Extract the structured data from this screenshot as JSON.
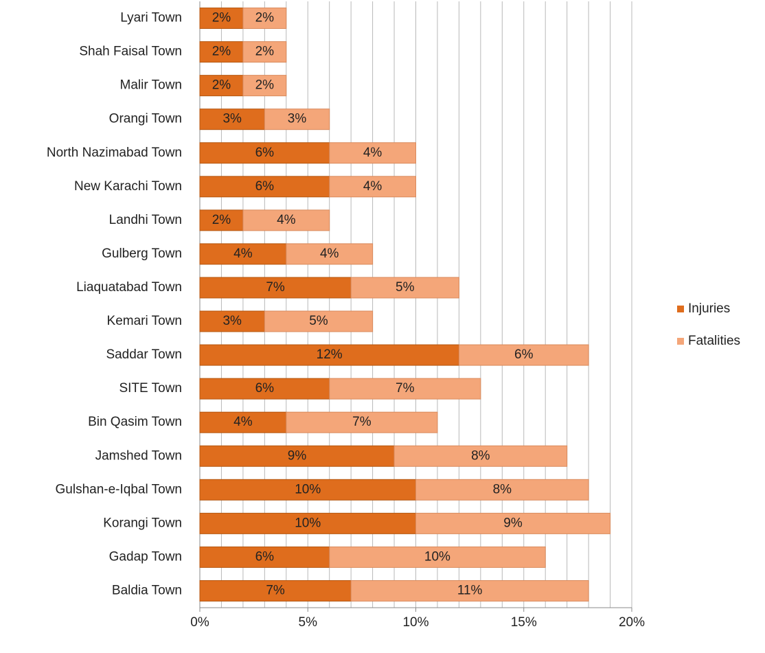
{
  "chart_data": {
    "type": "stacked_barh",
    "categories": [
      "Lyari Town",
      "Shah Faisal Town",
      "Malir Town",
      "Orangi Town",
      "North Nazimabad Town",
      "New Karachi Town",
      "Landhi Town",
      "Gulberg Town",
      "Liaquatabad Town",
      "Kemari Town",
      "Saddar Town",
      "SITE Town",
      "Bin Qasim Town",
      "Jamshed Town",
      "Gulshan-e-Iqbal Town",
      "Korangi Town",
      "Gadap Town",
      "Baldia Town"
    ],
    "series": [
      {
        "name": "Injuries",
        "color": "#df6d1d",
        "border": "#b4560f",
        "values": [
          2,
          2,
          2,
          3,
          6,
          6,
          2,
          4,
          7,
          3,
          12,
          6,
          4,
          9,
          10,
          10,
          6,
          7
        ],
        "value_labels": [
          "2%",
          "2%",
          "2%",
          "3%",
          "6%",
          "6%",
          "2%",
          "4%",
          "7%",
          "3%",
          "12%",
          "6%",
          "4%",
          "9%",
          "10%",
          "10%",
          "6%",
          "7%"
        ]
      },
      {
        "name": "Fatalities",
        "color": "#f4a679",
        "border": "#d98a5c",
        "values": [
          2,
          2,
          2,
          3,
          4,
          4,
          4,
          4,
          5,
          5,
          6,
          7,
          7,
          8,
          8,
          9,
          10,
          11
        ],
        "value_labels": [
          "2%",
          "2%",
          "2%",
          "3%",
          "4%",
          "4%",
          "4%",
          "4%",
          "5%",
          "5%",
          "6%",
          "7%",
          "7%",
          "8%",
          "8%",
          "9%",
          "10%",
          "11%"
        ]
      }
    ],
    "xlim": [
      0,
      20
    ],
    "xticks": [
      {
        "value": 0,
        "label": "0%"
      },
      {
        "value": 5,
        "label": "5%"
      },
      {
        "value": 10,
        "label": "10%"
      },
      {
        "value": 15,
        "label": "15%"
      },
      {
        "value": 20,
        "label": "20%"
      }
    ],
    "xgrid": [
      1,
      2,
      3,
      4,
      5,
      6,
      7,
      8,
      9,
      10,
      11,
      12,
      13,
      14,
      15,
      16,
      17,
      18,
      19,
      20
    ],
    "grid": true,
    "legend": "right"
  }
}
